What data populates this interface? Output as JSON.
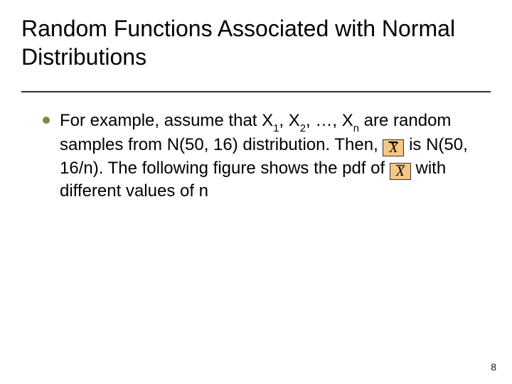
{
  "title": "Random Functions Associated with Normal Distributions",
  "bullet": {
    "dot_color": "#7a8a3a",
    "t1": "For example, assume that X",
    "s1": "1",
    "t2": ", X",
    "s2": "2",
    "t3": ", …, X",
    "s3": "n",
    "t4": " are random samples from N(50, 16) distribution. Then, ",
    "t5": " is N(50, 16/n). The following figure shows the pdf of ",
    "t6": " with different values of n",
    "xbar_label": "X"
  },
  "page_number": "8",
  "colors": {
    "background": "#ffffff",
    "text": "#000000",
    "underline": "#333333",
    "xbar_bg": "#f6c784",
    "xbar_border": "#333333"
  }
}
